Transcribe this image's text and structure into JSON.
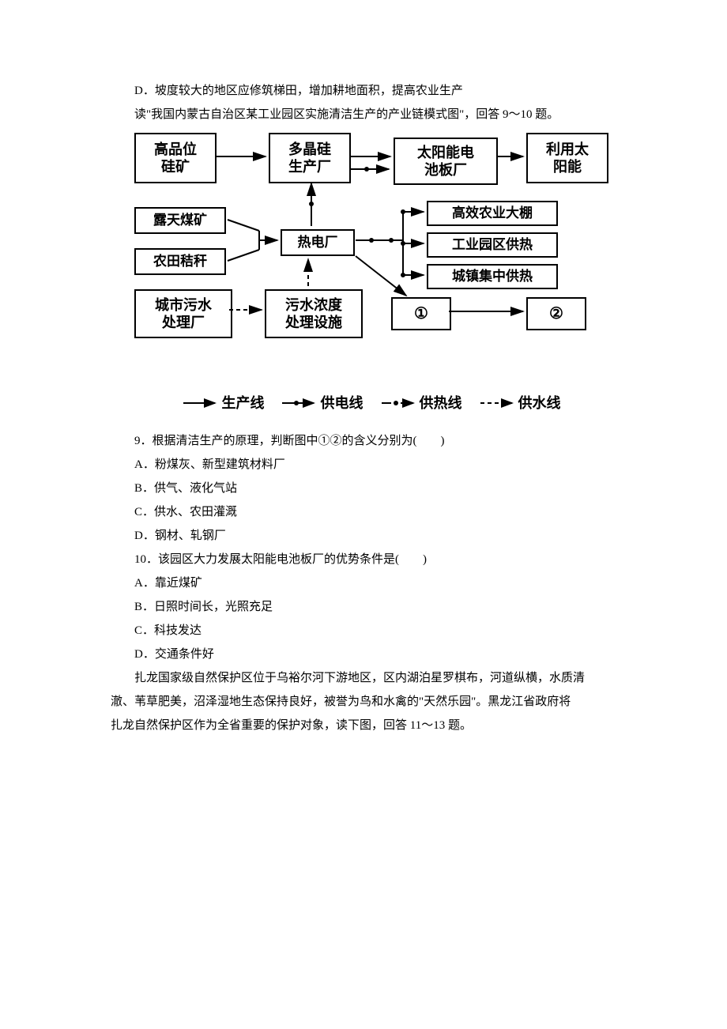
{
  "lines": {
    "optD_prev": "D．坡度较大的地区应修筑梯田，增加耕地面积，提高农业生产",
    "intro_9_10": "读\"我国内蒙古自治区某工业园区实施清洁生产的产业链模式图\"，回答 9～10 题。"
  },
  "diagram": {
    "boxes": {
      "silicon_ore": "高品位\n硅矿",
      "poly_si": "多晶硅\n生产厂",
      "solar_panel": "太阳能电\n池板厂",
      "use_solar": "利用太\n阳能",
      "coal_mine": "露天煤矿",
      "straw": "农田秸秆",
      "thermal_plant": "热电厂",
      "greenhouse": "高效农业大棚",
      "park_heat": "工业园区供热",
      "town_heat": "城镇集中供热",
      "city_sewage": "城市污水\n处理厂",
      "sewage_facility": "污水浓度\n处理设施",
      "node1": "①",
      "node2": "②"
    },
    "legend": {
      "production": "生产线",
      "power": "供电线",
      "heat": "供热线",
      "water": "供水线"
    }
  },
  "q9": {
    "stem": "9．根据清洁生产的原理，判断图中①②的含义分别为(　　)",
    "A": "A．粉煤灰、新型建筑材料厂",
    "B": "B．供气、液化气站",
    "C": "C．供水、农田灌溉",
    "D": "D．钢材、轧钢厂"
  },
  "q10": {
    "stem": "10．该园区大力发展太阳能电池板厂的优势条件是(　　)",
    "A": "A．靠近煤矿",
    "B": "B．日照时间长，光照充足",
    "C": "C．科技发达",
    "D": "D．交通条件好"
  },
  "passage11": {
    "p1": "扎龙国家级自然保护区位于乌裕尔河下游地区，区内湖泊星罗棋布，河道纵横，水质清",
    "p2": "澈、苇草肥美，沼泽湿地生态保持良好，被誉为鸟和水禽的\"天然乐园\"。黑龙江省政府将",
    "p3": "扎龙自然保护区作为全省重要的保护对象，读下图，回答 11～13 题。"
  }
}
